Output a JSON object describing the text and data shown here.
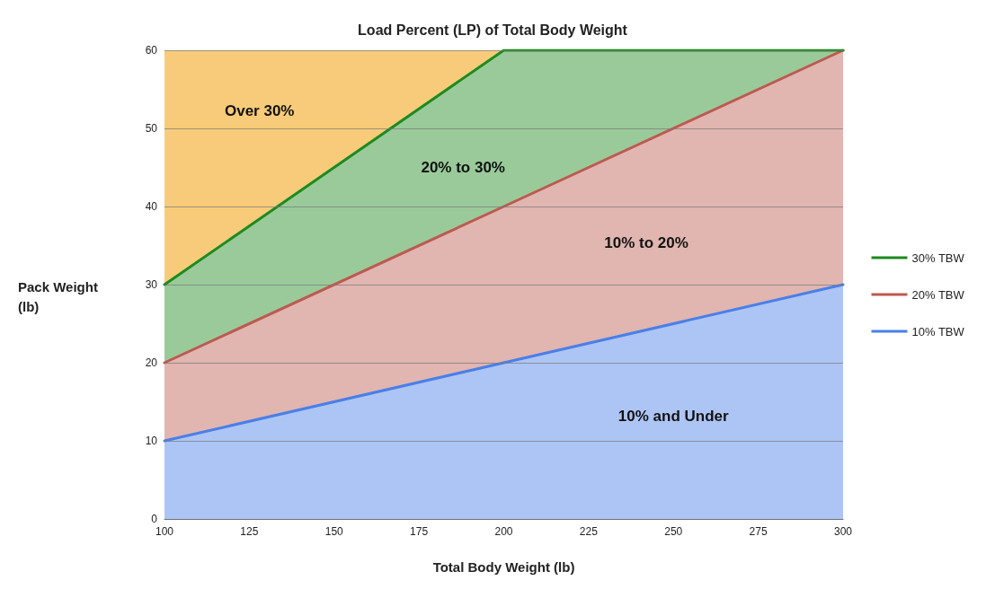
{
  "chart_data": {
    "type": "area",
    "title": "Load Percent (LP) of Total Body Weight",
    "xlabel": "Total Body Weight (lb)",
    "ylabel": "Pack Weight\n(lb)",
    "xlim": [
      100,
      300
    ],
    "xticks": [
      100,
      125,
      150,
      175,
      200,
      225,
      250,
      275,
      300
    ],
    "ylim": [
      0,
      60
    ],
    "yticks": [
      0,
      10,
      20,
      30,
      40,
      50,
      60
    ],
    "grid": "y",
    "legend": "right",
    "line_style": "solid",
    "stacked": true,
    "series": [
      {
        "name": "10% TBW",
        "color": "#4a7fe8",
        "x": [
          100,
          200,
          300
        ],
        "values": [
          10,
          20,
          30
        ]
      },
      {
        "name": "20% TBW",
        "color": "#bc5a50",
        "x": [
          100,
          200,
          300
        ],
        "values": [
          10,
          20,
          30
        ]
      },
      {
        "name": "30% TBW",
        "color": "#1e8a1e",
        "x": [
          100,
          200,
          300
        ],
        "values": [
          10,
          20,
          0
        ]
      },
      {
        "color": "#f8cb7a",
        "x": [
          100,
          200,
          300
        ],
        "values": [
          30,
          0,
          0
        ]
      }
    ],
    "annotations": [
      "Over 30%",
      "20% to 30%",
      "10% to 20%",
      "10% and Under"
    ]
  }
}
